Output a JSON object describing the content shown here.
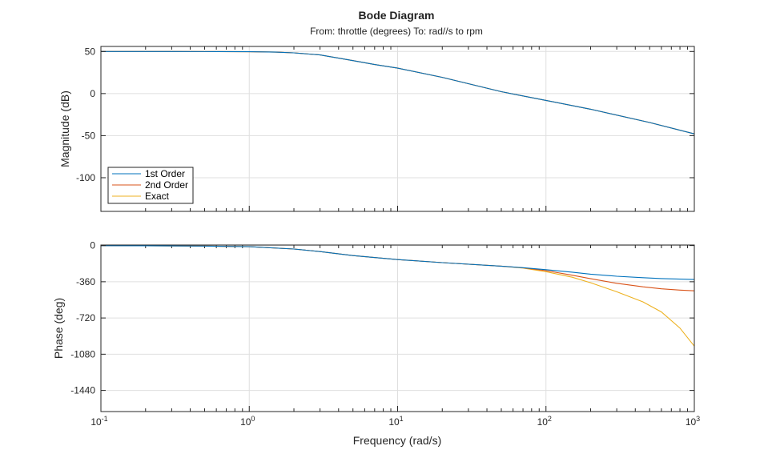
{
  "chart_data": {
    "type": "line",
    "title": "Bode Diagram",
    "subtitle": "From: throttle (degrees)  To: rad//s to rpm",
    "xlabel": "Frequency (rad/s)",
    "xscale": "log",
    "xlim": [
      0.1,
      1000
    ],
    "x_tick_labels": [
      {
        "base": "10",
        "exp": "-1"
      },
      {
        "base": "10",
        "exp": "0"
      },
      {
        "base": "10",
        "exp": "1"
      },
      {
        "base": "10",
        "exp": "2"
      },
      {
        "base": "10",
        "exp": "3"
      }
    ],
    "colors": {
      "first": "#0072BD",
      "second": "#D95319",
      "exact": "#EDB120"
    },
    "legend": {
      "location": "bottom-left (magnitude plot)",
      "entries": [
        "1st Order",
        "2nd Order",
        "Exact"
      ]
    },
    "magnitude": {
      "ylabel": "Magnitude (dB)",
      "ylim": [
        -140,
        56
      ],
      "yticks": [
        50,
        0,
        -50,
        -100
      ],
      "ytick_labels": [
        "50",
        "0",
        "-50",
        "-100"
      ],
      "x": [
        0.1,
        0.3,
        0.6,
        1,
        1.5,
        2,
        3,
        5,
        7,
        10,
        20,
        50,
        100,
        200,
        500,
        1000
      ],
      "series": [
        {
          "name": "1st Order",
          "values": [
            50,
            50,
            49.9,
            49.7,
            49.2,
            48.4,
            45.9,
            39.2,
            34.5,
            30.2,
            19.3,
            2.2,
            -8.1,
            -18.6,
            -34.4,
            -47.9
          ]
        },
        {
          "name": "2nd Order",
          "values": [
            50,
            50,
            49.9,
            49.7,
            49.2,
            48.4,
            45.9,
            39.2,
            34.5,
            30.2,
            19.3,
            2.2,
            -8.1,
            -18.6,
            -34.4,
            -47.9
          ]
        },
        {
          "name": "Exact",
          "values": [
            50,
            50,
            49.9,
            49.7,
            49.2,
            48.4,
            45.9,
            39.2,
            34.5,
            30.2,
            19.3,
            2.2,
            -8.1,
            -18.6,
            -34.4,
            -47.9
          ]
        }
      ]
    },
    "phase": {
      "ylabel": "Phase (deg)",
      "ylim": [
        -1650,
        5
      ],
      "yticks": [
        0,
        -360,
        -720,
        -1080,
        -1440
      ],
      "ytick_labels": [
        "0",
        "-360",
        "-720",
        "-1080",
        "-1440"
      ],
      "x": [
        0.1,
        0.2,
        0.5,
        1,
        2,
        3,
        5,
        10,
        20,
        50,
        70,
        100,
        150,
        200,
        300,
        450,
        600,
        800,
        1000
      ],
      "series": [
        {
          "name": "1st Order",
          "values": [
            -1,
            -2,
            -5,
            -12,
            -35,
            -60,
            -100,
            -140,
            -170,
            -205,
            -220,
            -240,
            -265,
            -285,
            -305,
            -320,
            -328,
            -334,
            -338
          ]
        },
        {
          "name": "2nd Order",
          "values": [
            -1,
            -2,
            -5,
            -12,
            -35,
            -60,
            -100,
            -140,
            -170,
            -205,
            -222,
            -250,
            -295,
            -330,
            -375,
            -410,
            -430,
            -443,
            -450
          ]
        },
        {
          "name": "Exact",
          "values": [
            -1,
            -2,
            -5,
            -12,
            -35,
            -60,
            -100,
            -140,
            -170,
            -205,
            -224,
            -260,
            -315,
            -370,
            -460,
            -560,
            -660,
            -820,
            -1000
          ]
        }
      ]
    }
  }
}
